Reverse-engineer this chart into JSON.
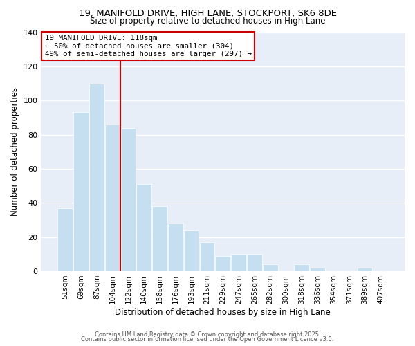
{
  "title": "19, MANIFOLD DRIVE, HIGH LANE, STOCKPORT, SK6 8DE",
  "subtitle": "Size of property relative to detached houses in High Lane",
  "xlabel": "Distribution of detached houses by size in High Lane",
  "ylabel": "Number of detached properties",
  "bar_color": "#c5dff0",
  "bar_edge_color": "#ffffff",
  "categories": [
    "51sqm",
    "69sqm",
    "87sqm",
    "104sqm",
    "122sqm",
    "140sqm",
    "158sqm",
    "176sqm",
    "193sqm",
    "211sqm",
    "229sqm",
    "247sqm",
    "265sqm",
    "282sqm",
    "300sqm",
    "318sqm",
    "336sqm",
    "354sqm",
    "371sqm",
    "389sqm",
    "407sqm"
  ],
  "values": [
    37,
    93,
    110,
    86,
    84,
    51,
    38,
    28,
    24,
    17,
    9,
    10,
    10,
    4,
    0,
    4,
    2,
    0,
    0,
    2,
    0
  ],
  "vline_color": "#cc0000",
  "annotation_title": "19 MANIFOLD DRIVE: 118sqm",
  "annotation_line1": "← 50% of detached houses are smaller (304)",
  "annotation_line2": "49% of semi-detached houses are larger (297) →",
  "annotation_box_facecolor": "#ffffff",
  "annotation_box_edgecolor": "#cc0000",
  "ylim": [
    0,
    140
  ],
  "yticks": [
    0,
    20,
    40,
    60,
    80,
    100,
    120,
    140
  ],
  "footer1": "Contains HM Land Registry data © Crown copyright and database right 2025.",
  "footer2": "Contains public sector information licensed under the Open Government Licence v3.0.",
  "background_color": "#ffffff",
  "plot_bg_color": "#e8eef8",
  "grid_color": "#ffffff"
}
